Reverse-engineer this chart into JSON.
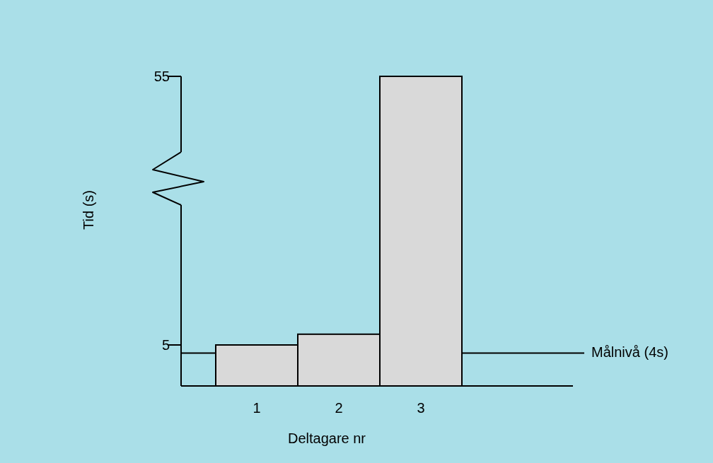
{
  "chart_data": {
    "type": "bar",
    "xlabel": "Deltagare nr",
    "ylabel": "Tid (s)",
    "categories": [
      "1",
      "2",
      "3"
    ],
    "values": [
      5,
      7,
      55
    ],
    "color": "#d9d9d9",
    "ylim": [
      0,
      55
    ],
    "yticks": [
      5,
      55
    ],
    "ref_lines": [
      {
        "axis": "y",
        "value": 4,
        "label": "Målnivå (4s)",
        "color": "#000000"
      }
    ]
  }
}
